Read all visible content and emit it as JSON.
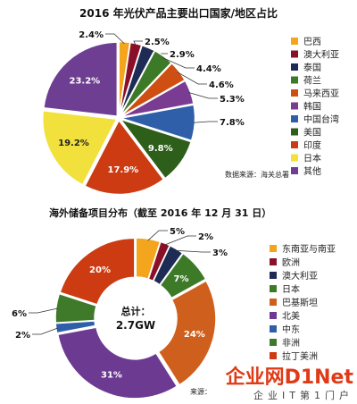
{
  "chart_data": [
    {
      "type": "pie",
      "title": "2016 年光伏产品主要出口国家/地区占比",
      "source": "数据来源：海关总署",
      "categories": [
        "巴西",
        "澳大利亚",
        "泰国",
        "荷兰",
        "马来西亚",
        "韩国",
        "中国台湾",
        "美国",
        "印度",
        "日本",
        "其他"
      ],
      "values": [
        2.4,
        2.5,
        2.9,
        4.4,
        4.6,
        5.3,
        7.8,
        9.8,
        17.9,
        19.2,
        23.2
      ],
      "labels": [
        "2.4%",
        "2.5%",
        "2.9%",
        "4.4%",
        "4.6%",
        "5.3%",
        "7.8%",
        "9.8%",
        "17.9%",
        "19.2%",
        "23.2%"
      ],
      "colors": [
        "#f2a51d",
        "#8a1027",
        "#1d2b55",
        "#3d7a28",
        "#cf4f12",
        "#7a3c92",
        "#2f5fa8",
        "#2e5f1a",
        "#cc3b12",
        "#f2e13c",
        "#6d3e92"
      ],
      "legend_position": "right"
    },
    {
      "type": "pie",
      "variant": "donut",
      "title": "海外储备项目分布（截至 2016 年 12 月 31 日）",
      "source": "来源：",
      "center_label": "总计：",
      "center_value": "2.7GW",
      "categories": [
        "东南亚与南亚",
        "欧洲",
        "澳大利亚",
        "日本",
        "巴基斯坦",
        "北美",
        "中东",
        "非洲",
        "拉丁美洲"
      ],
      "values": [
        5,
        2,
        3,
        7,
        24,
        31,
        2,
        6,
        20
      ],
      "labels": [
        "5%",
        "2%",
        "3%",
        "7%",
        "24%",
        "31%",
        "2%",
        "6%",
        "20%"
      ],
      "colors": [
        "#f2a51d",
        "#8a1027",
        "#1d2b55",
        "#3d7a28",
        "#cf5f1c",
        "#6d3a92",
        "#2f5fa8",
        "#3f7a2a",
        "#cc3b12"
      ],
      "legend_position": "right"
    }
  ],
  "watermark": {
    "brand": "企业网D1Net",
    "tagline": "企业IT第1门户"
  }
}
